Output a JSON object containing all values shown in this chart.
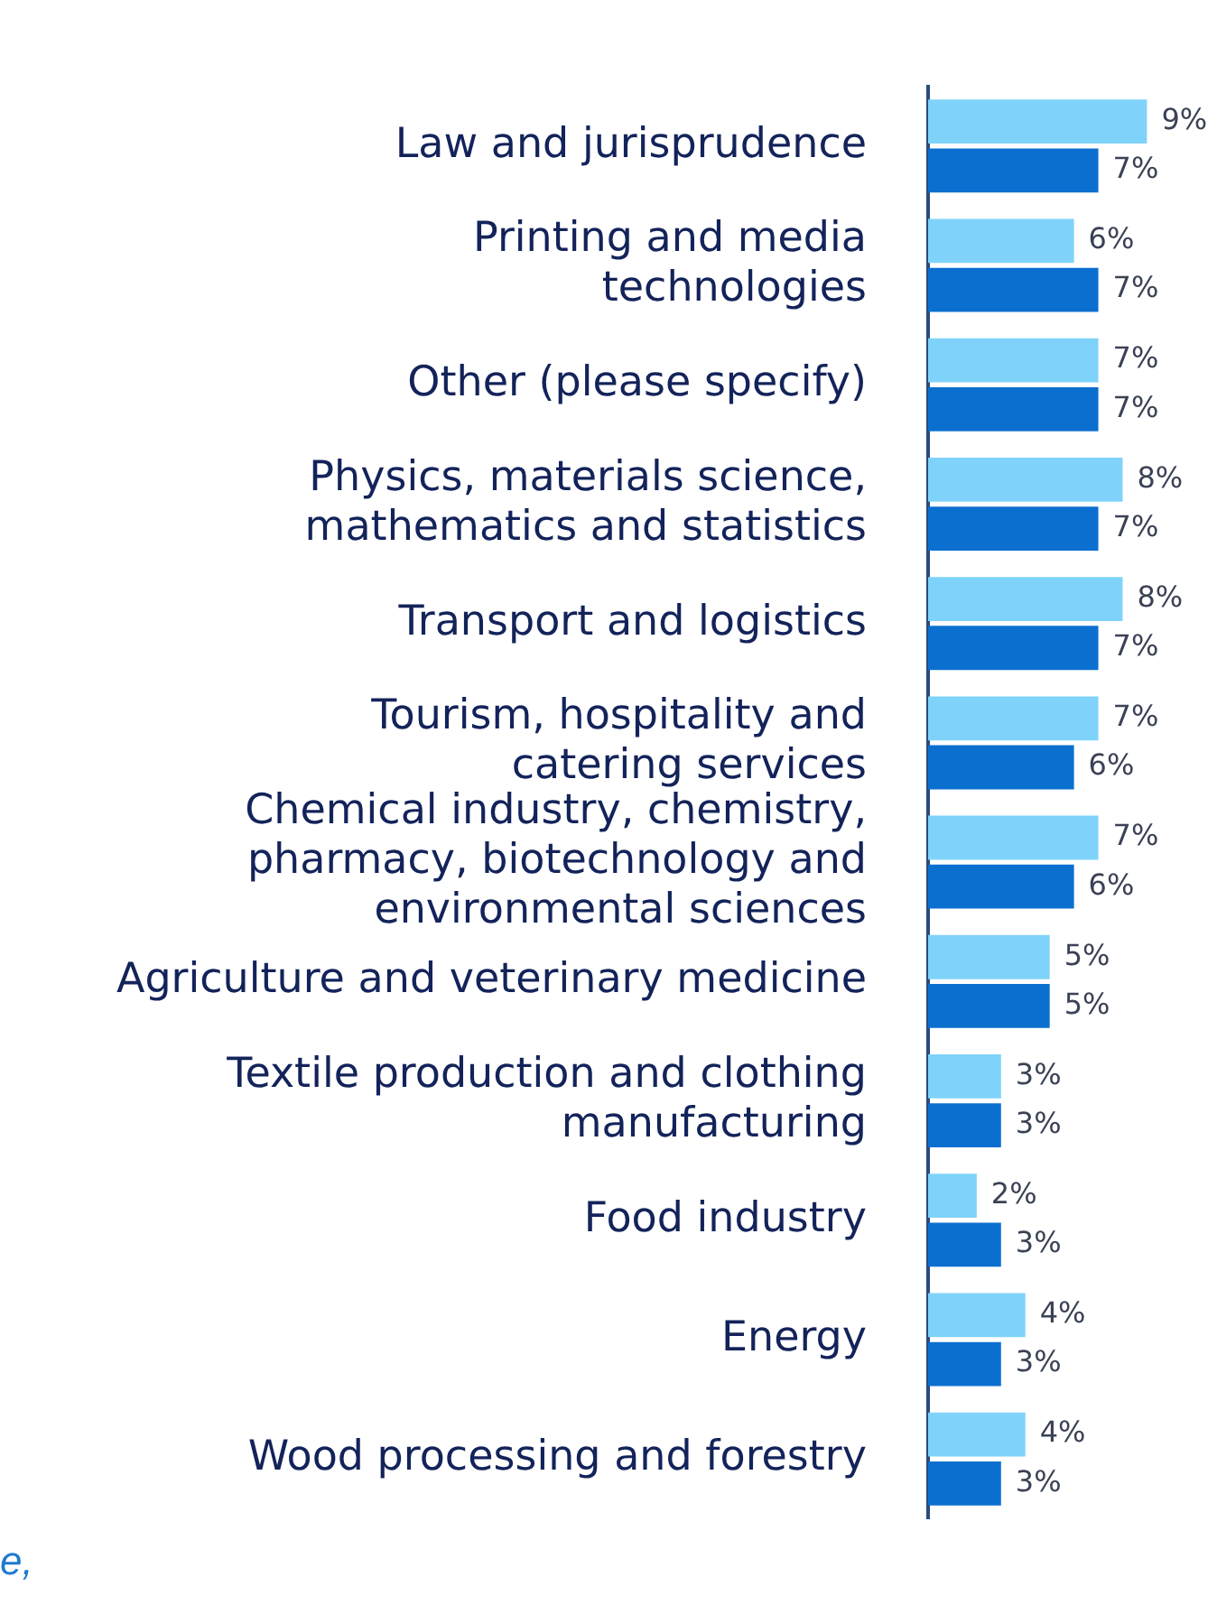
{
  "chart_data": {
    "type": "bar",
    "orientation": "horizontal",
    "categories": [
      "Law and jurisprudence",
      "Printing and media\ntechnologies",
      "Other (please specify)",
      "Physics, materials science,\nmathematics and statistics",
      "Transport and logistics",
      "Tourism, hospitality and\ncatering services",
      "Chemical industry, chemistry,\npharmacy, biotechnology and\nenvironmental sciences",
      "Agriculture and veterinary medicine",
      "Textile production and clothing\nmanufacturing",
      "Food industry",
      "Energy",
      "Wood processing and forestry"
    ],
    "series": [
      {
        "color": "#7fd3fa",
        "values": [
          9,
          6,
          7,
          8,
          8,
          7,
          7,
          5,
          3,
          2,
          4,
          4
        ],
        "value_labels": [
          "9%",
          "6%",
          "7%",
          "8%",
          "8%",
          "7%",
          "7%",
          "5%",
          "3%",
          "2%",
          "4%",
          "4%"
        ]
      },
      {
        "color": "#0b6fd0",
        "values": [
          7,
          7,
          7,
          7,
          7,
          6,
          6,
          5,
          3,
          3,
          3,
          3
        ],
        "value_labels": [
          "7%",
          "7%",
          "7%",
          "7%",
          "7%",
          "6%",
          "6%",
          "5%",
          "3%",
          "3%",
          "3%",
          "3%"
        ]
      }
    ],
    "annotations": [
      "e,"
    ]
  }
}
